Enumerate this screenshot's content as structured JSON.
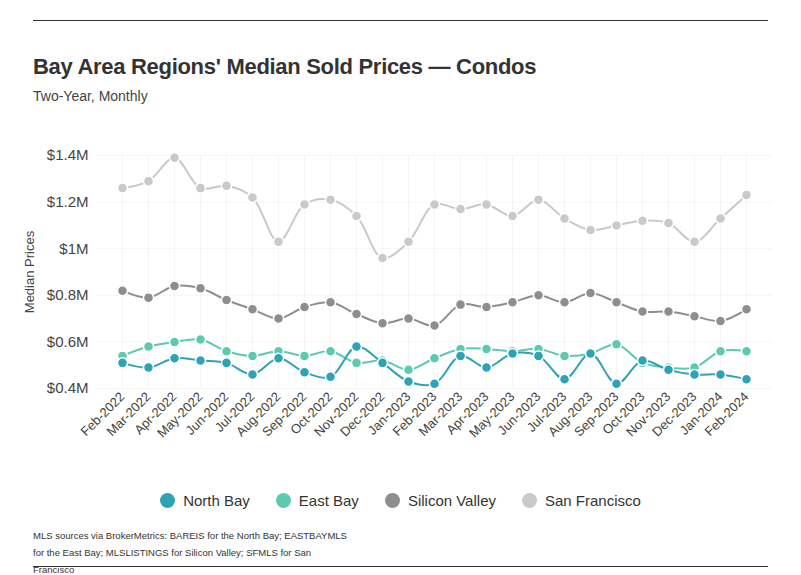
{
  "chart_data": {
    "type": "line",
    "title": "Bay Area Regions' Median Sold Prices — Condos",
    "subtitle": "Two-Year, Monthly",
    "y_label": "Median Prices",
    "caption": "MLS sources via BrokerMetrics: BAREIS for the North Bay; EASTBAYMLS for the East Bay; MLSLISTINGS for Silicon Valley; SFMLS for San Francisco",
    "categories": [
      "Feb-2022",
      "Mar-2022",
      "Apr-2022",
      "May-2022",
      "Jun-2022",
      "Jul-2022",
      "Aug-2022",
      "Sep-2022",
      "Oct-2022",
      "Nov-2022",
      "Dec-2022",
      "Jan-2023",
      "Feb-2023",
      "Mar-2023",
      "Apr-2023",
      "May-2023",
      "Jun-2023",
      "Jul-2023",
      "Aug-2023",
      "Sep-2023",
      "Oct-2023",
      "Nov-2023",
      "Dec-2023",
      "Jan-2024",
      "Feb-2024"
    ],
    "series": [
      {
        "name": "North Bay",
        "color": "#2fa3b6",
        "marker": "circle",
        "values": [
          0.51,
          0.49,
          0.53,
          0.52,
          0.51,
          0.46,
          0.53,
          0.47,
          0.45,
          0.58,
          0.51,
          0.43,
          0.42,
          0.54,
          0.49,
          0.55,
          0.54,
          0.44,
          0.55,
          0.42,
          0.52,
          0.48,
          0.46,
          0.46,
          0.44
        ]
      },
      {
        "name": "East Bay",
        "color": "#5ec9b1",
        "marker": "circle",
        "values": [
          0.54,
          0.58,
          0.6,
          0.61,
          0.56,
          0.54,
          0.56,
          0.54,
          0.56,
          0.51,
          0.52,
          0.48,
          0.53,
          0.57,
          0.57,
          0.56,
          0.57,
          0.54,
          0.55,
          0.59,
          0.51,
          0.49,
          0.49,
          0.56,
          0.56
        ]
      },
      {
        "name": "Silicon Valley",
        "color": "#8e8e8e",
        "marker": "circle",
        "values": [
          0.82,
          0.79,
          0.84,
          0.83,
          0.78,
          0.74,
          0.7,
          0.75,
          0.77,
          0.72,
          0.68,
          0.7,
          0.67,
          0.76,
          0.75,
          0.77,
          0.8,
          0.77,
          0.81,
          0.77,
          0.73,
          0.73,
          0.71,
          0.69,
          0.74
        ]
      },
      {
        "name": "San Francisco",
        "color": "#c9c9c9",
        "marker": "circle",
        "values": [
          1.26,
          1.29,
          1.39,
          1.26,
          1.27,
          1.22,
          1.03,
          1.19,
          1.21,
          1.14,
          0.96,
          1.03,
          1.19,
          1.17,
          1.19,
          1.14,
          1.21,
          1.13,
          1.08,
          1.1,
          1.12,
          1.11,
          1.03,
          1.13,
          1.23
        ]
      }
    ],
    "ylim": [
      0.4,
      1.4
    ],
    "yticks": [
      {
        "value": 0.4,
        "label": "$0.4M"
      },
      {
        "value": 0.6,
        "label": "$0.6M"
      },
      {
        "value": 0.8,
        "label": "$0.8M"
      },
      {
        "value": 1,
        "label": "$1M"
      },
      {
        "value": 1.2,
        "label": "$1.2M"
      },
      {
        "value": 1.4,
        "label": "$1.4M"
      }
    ],
    "grid": true,
    "legend": "bottom"
  }
}
